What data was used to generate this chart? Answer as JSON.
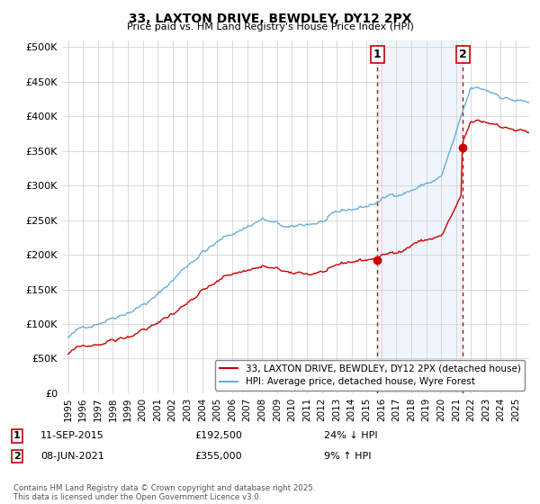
{
  "title": "33, LAXTON DRIVE, BEWDLEY, DY12 2PX",
  "subtitle": "Price paid vs. HM Land Registry's House Price Index (HPI)",
  "ylabel_ticks": [
    "£0",
    "£50K",
    "£100K",
    "£150K",
    "£200K",
    "£250K",
    "£300K",
    "£350K",
    "£400K",
    "£450K",
    "£500K"
  ],
  "ytick_values": [
    0,
    50000,
    100000,
    150000,
    200000,
    250000,
    300000,
    350000,
    400000,
    450000,
    500000
  ],
  "ylim": [
    0,
    510000
  ],
  "hpi_color": "#6baed6",
  "price_color": "#cc0000",
  "vline_color": "#cc0000",
  "shade_color": "#ddeeff",
  "marker1_label": "1",
  "marker2_label": "2",
  "legend_line1": "33, LAXTON DRIVE, BEWDLEY, DY12 2PX (detached house)",
  "legend_line2": "HPI: Average price, detached house, Wyre Forest",
  "annotation1_date": "11-SEP-2015",
  "annotation1_price": "£192,500",
  "annotation1_hpi": "24% ↓ HPI",
  "annotation2_date": "08-JUN-2021",
  "annotation2_price": "£355,000",
  "annotation2_hpi": "9% ↑ HPI",
  "footer": "Contains HM Land Registry data © Crown copyright and database right 2025.\nThis data is licensed under the Open Government Licence v3.0.",
  "background_color": "#ffffff",
  "grid_color": "#cccccc",
  "xtick_years": [
    1995,
    1996,
    1997,
    1998,
    1999,
    2000,
    2001,
    2002,
    2003,
    2004,
    2005,
    2006,
    2007,
    2008,
    2009,
    2010,
    2011,
    2012,
    2013,
    2014,
    2015,
    2016,
    2017,
    2018,
    2019,
    2020,
    2021,
    2022,
    2023,
    2024,
    2025
  ],
  "sale1_t": 2015.708,
  "sale2_t": 2021.458,
  "sale1_price": 192500,
  "sale2_price": 355000
}
